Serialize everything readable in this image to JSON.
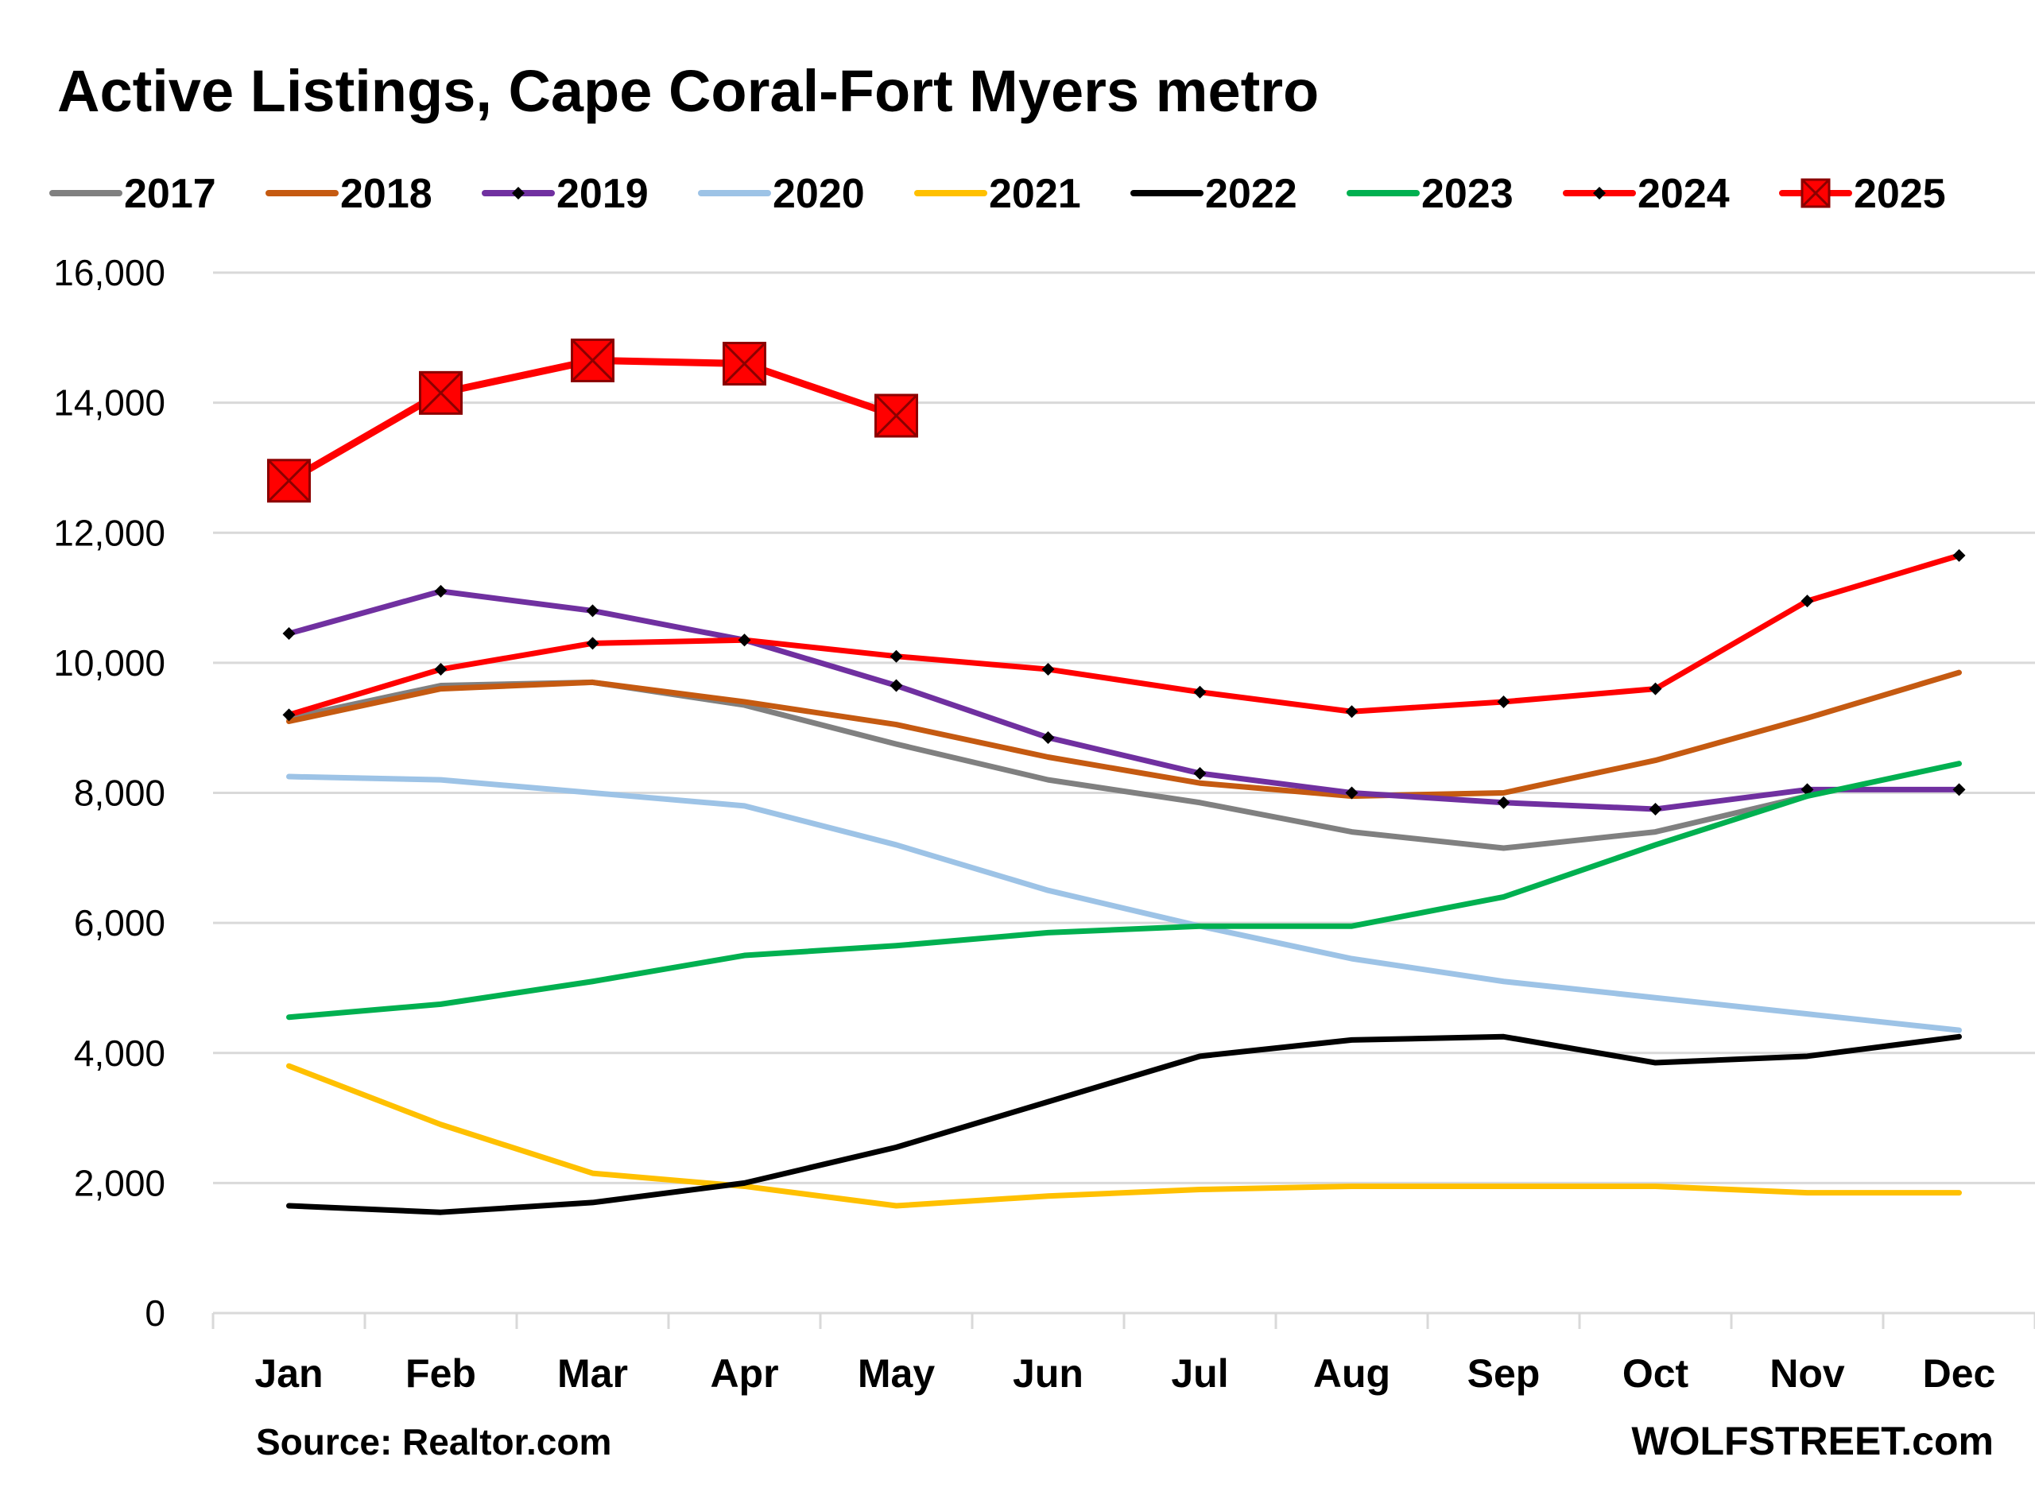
{
  "chart_data": {
    "type": "line",
    "title": "Active Listings, Cape Coral-Fort Myers metro",
    "categories": [
      "Jan",
      "Feb",
      "Mar",
      "Apr",
      "May",
      "Jun",
      "Jul",
      "Aug",
      "Sep",
      "Oct",
      "Nov",
      "Dec"
    ],
    "ylim": [
      0,
      16000
    ],
    "yticks": [
      0,
      2000,
      4000,
      6000,
      8000,
      10000,
      12000,
      14000,
      16000
    ],
    "ytick_labels": [
      "0",
      "2,000",
      "4,000",
      "6,000",
      "8,000",
      "10,000",
      "12,000",
      "14,000",
      "16,000"
    ],
    "grid": "horizontal",
    "legend_position": "top",
    "source": "Source: Realtor.com",
    "credit": "WOLFSTREET.com",
    "series": [
      {
        "name": "2017",
        "color": "#808080",
        "marker": "none",
        "values": [
          9150,
          9650,
          9700,
          9350,
          8750,
          8200,
          7850,
          7400,
          7150,
          7400,
          7950,
          null
        ]
      },
      {
        "name": "2018",
        "color": "#C55A11",
        "marker": "none",
        "values": [
          9100,
          9600,
          9700,
          9400,
          9050,
          8550,
          8150,
          7950,
          8000,
          8500,
          9150,
          9850
        ]
      },
      {
        "name": "2019",
        "color": "#7030A0",
        "marker": "diamond",
        "values": [
          10450,
          11100,
          10800,
          10350,
          9650,
          8850,
          8300,
          8000,
          7850,
          7750,
          8050,
          8050
        ]
      },
      {
        "name": "2020",
        "color": "#9DC3E6",
        "marker": "none",
        "values": [
          8250,
          8200,
          8000,
          7800,
          7200,
          6500,
          5950,
          5450,
          5100,
          4850,
          4600,
          4350
        ]
      },
      {
        "name": "2021",
        "color": "#FFC000",
        "marker": "none",
        "values": [
          3800,
          2900,
          2150,
          1950,
          1650,
          1800,
          1900,
          1950,
          1950,
          1950,
          1850,
          1850
        ]
      },
      {
        "name": "2022",
        "color": "#000000",
        "marker": "none",
        "values": [
          1650,
          1550,
          1700,
          2000,
          2550,
          3250,
          3950,
          4200,
          4250,
          3850,
          3950,
          4250
        ]
      },
      {
        "name": "2023",
        "color": "#00B050",
        "marker": "none",
        "values": [
          4550,
          4750,
          5100,
          5500,
          5650,
          5850,
          5950,
          5950,
          6400,
          7200,
          7950,
          8450
        ]
      },
      {
        "name": "2024",
        "color": "#FF0000",
        "marker": "diamond",
        "values": [
          9200,
          9900,
          10300,
          10350,
          10100,
          9900,
          9550,
          9250,
          9400,
          9600,
          10950,
          11650
        ]
      },
      {
        "name": "2025",
        "color": "#FF0000",
        "marker": "square-x",
        "values": [
          12800,
          14150,
          14650,
          14600,
          13800,
          null,
          null,
          null,
          null,
          null,
          null,
          null
        ]
      }
    ]
  }
}
